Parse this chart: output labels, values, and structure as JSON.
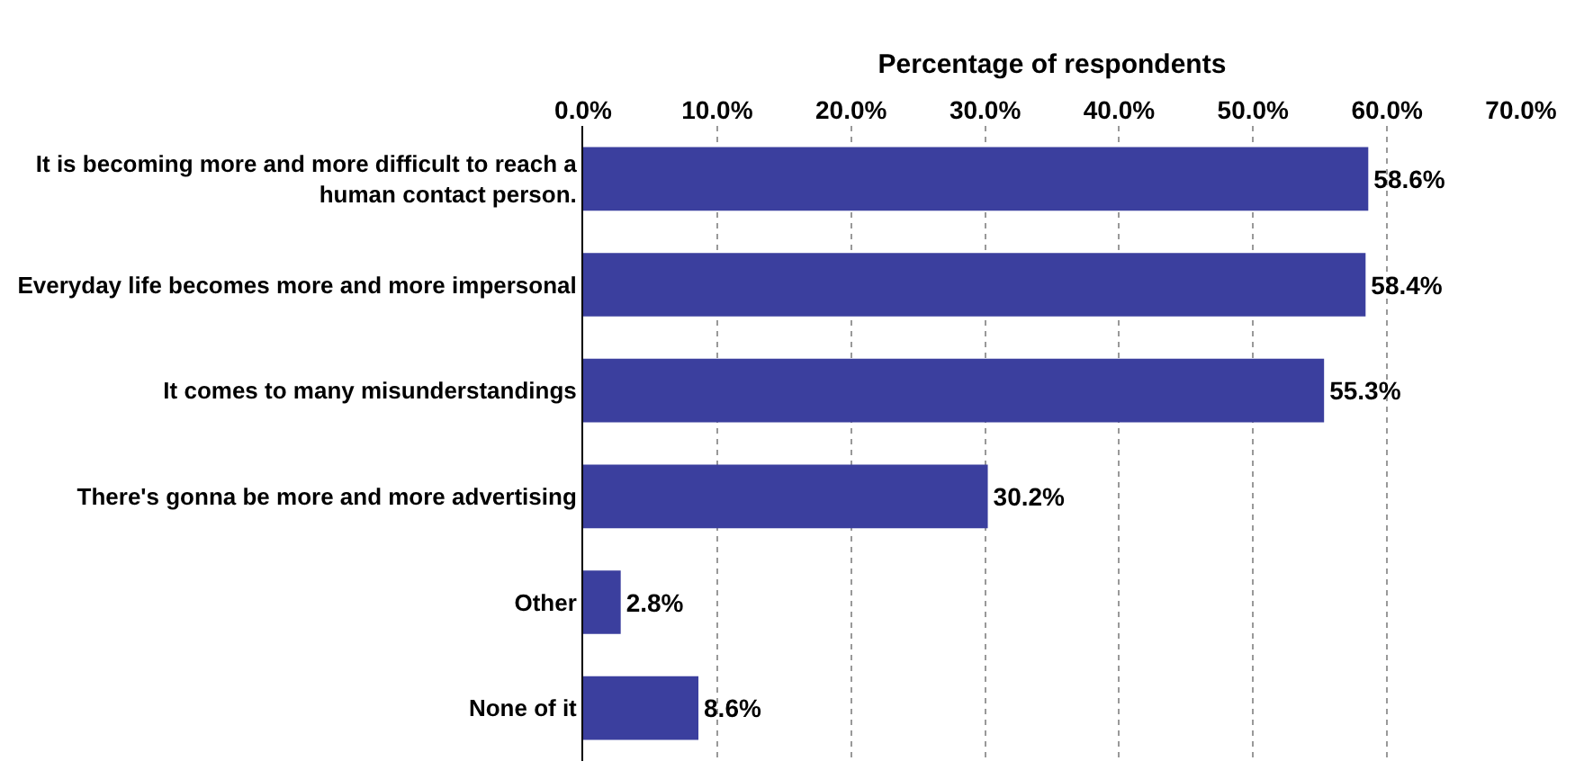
{
  "chart_data": {
    "type": "bar",
    "orientation": "horizontal",
    "xlabel": "Percentage of respondents",
    "categories": [
      "It is becoming more and more difficult to reach a human contact person.",
      "Everyday life becomes more and more impersonal",
      "It comes to many misunderstandings",
      "There's gonna be more and more advertising",
      "Other",
      "None of it"
    ],
    "values": [
      58.6,
      58.4,
      55.3,
      30.2,
      2.8,
      8.6
    ],
    "value_labels": [
      "58.6%",
      "58.4%",
      "55.3%",
      "30.2%",
      "2.8%",
      "8.6%"
    ],
    "color": "#3b3f9e",
    "xlim": [
      0,
      70
    ],
    "xticks": [
      {
        "value": 0,
        "label": "0.0%"
      },
      {
        "value": 10,
        "label": "10.0%"
      },
      {
        "value": 20,
        "label": "20.0%"
      },
      {
        "value": 30,
        "label": "30.0%"
      },
      {
        "value": 40,
        "label": "40.0%"
      },
      {
        "value": 50,
        "label": "50.0%"
      },
      {
        "value": 60,
        "label": "60.0%"
      },
      {
        "value": 70,
        "label": "70.0%"
      }
    ],
    "grid": "x",
    "legend": false
  }
}
